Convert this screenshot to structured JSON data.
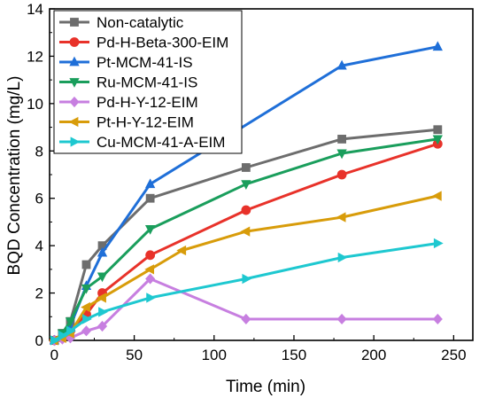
{
  "chart_data": {
    "type": "line",
    "title": "",
    "xlabel": "Time (min)",
    "ylabel": "BQD Concentration (mg/L)",
    "xlim": [
      -3,
      262
    ],
    "ylim": [
      0,
      14
    ],
    "x_ticks": [
      0,
      50,
      100,
      150,
      200,
      250
    ],
    "y_ticks": [
      0,
      2,
      4,
      6,
      8,
      10,
      12,
      14
    ],
    "grid": false,
    "legend": "top-left",
    "series": [
      {
        "name": "Non-catalytic",
        "color": "#6d6d6d",
        "marker": "square",
        "x": [
          0,
          5,
          10,
          20,
          30,
          60,
          120,
          180,
          240
        ],
        "y": [
          0,
          0.3,
          0.8,
          3.2,
          4.0,
          6.0,
          7.3,
          8.5,
          8.9
        ]
      },
      {
        "name": "Pd-H-Beta-300-EIM",
        "color": "#e8322a",
        "marker": "circle",
        "x": [
          0,
          5,
          10,
          20,
          30,
          60,
          120,
          180,
          240
        ],
        "y": [
          0,
          0.1,
          0.4,
          1.1,
          2.0,
          3.6,
          5.5,
          7.0,
          8.3
        ]
      },
      {
        "name": "Pt-MCM-41-IS",
        "color": "#1f6fd8",
        "marker": "triangle-up",
        "x": [
          0,
          5,
          10,
          20,
          30,
          60,
          180,
          240
        ],
        "y": [
          0,
          0.2,
          0.6,
          2.3,
          3.7,
          6.6,
          11.6,
          12.4
        ]
      },
      {
        "name": "Ru-MCM-41-IS",
        "color": "#1a9e5c",
        "marker": "triangle-down",
        "x": [
          0,
          5,
          10,
          20,
          30,
          60,
          120,
          180,
          240
        ],
        "y": [
          0,
          0.3,
          0.8,
          2.2,
          2.7,
          4.7,
          6.6,
          7.9,
          8.5
        ]
      },
      {
        "name": "Pd-H-Y-12-EIM",
        "color": "#c77fe0",
        "marker": "diamond",
        "x": [
          0,
          5,
          10,
          20,
          30,
          60,
          120,
          180,
          240
        ],
        "y": [
          0,
          0.05,
          0.1,
          0.4,
          0.6,
          2.6,
          0.9,
          0.9,
          0.9
        ]
      },
      {
        "name": "Pt-H-Y-12-EIM",
        "color": "#d89c0a",
        "marker": "triangle-left",
        "x": [
          0,
          5,
          10,
          20,
          30,
          60,
          80,
          120,
          180,
          240
        ],
        "y": [
          0,
          0.1,
          0.3,
          1.4,
          1.8,
          3.0,
          3.8,
          4.6,
          5.2,
          6.1
        ]
      },
      {
        "name": "Cu-MCM-41-A-EIM",
        "color": "#1ec8d0",
        "marker": "triangle-right",
        "x": [
          0,
          5,
          10,
          20,
          30,
          60,
          120,
          180,
          240
        ],
        "y": [
          0,
          0.2,
          0.4,
          0.9,
          1.2,
          1.8,
          2.6,
          3.5,
          4.1
        ]
      }
    ]
  }
}
